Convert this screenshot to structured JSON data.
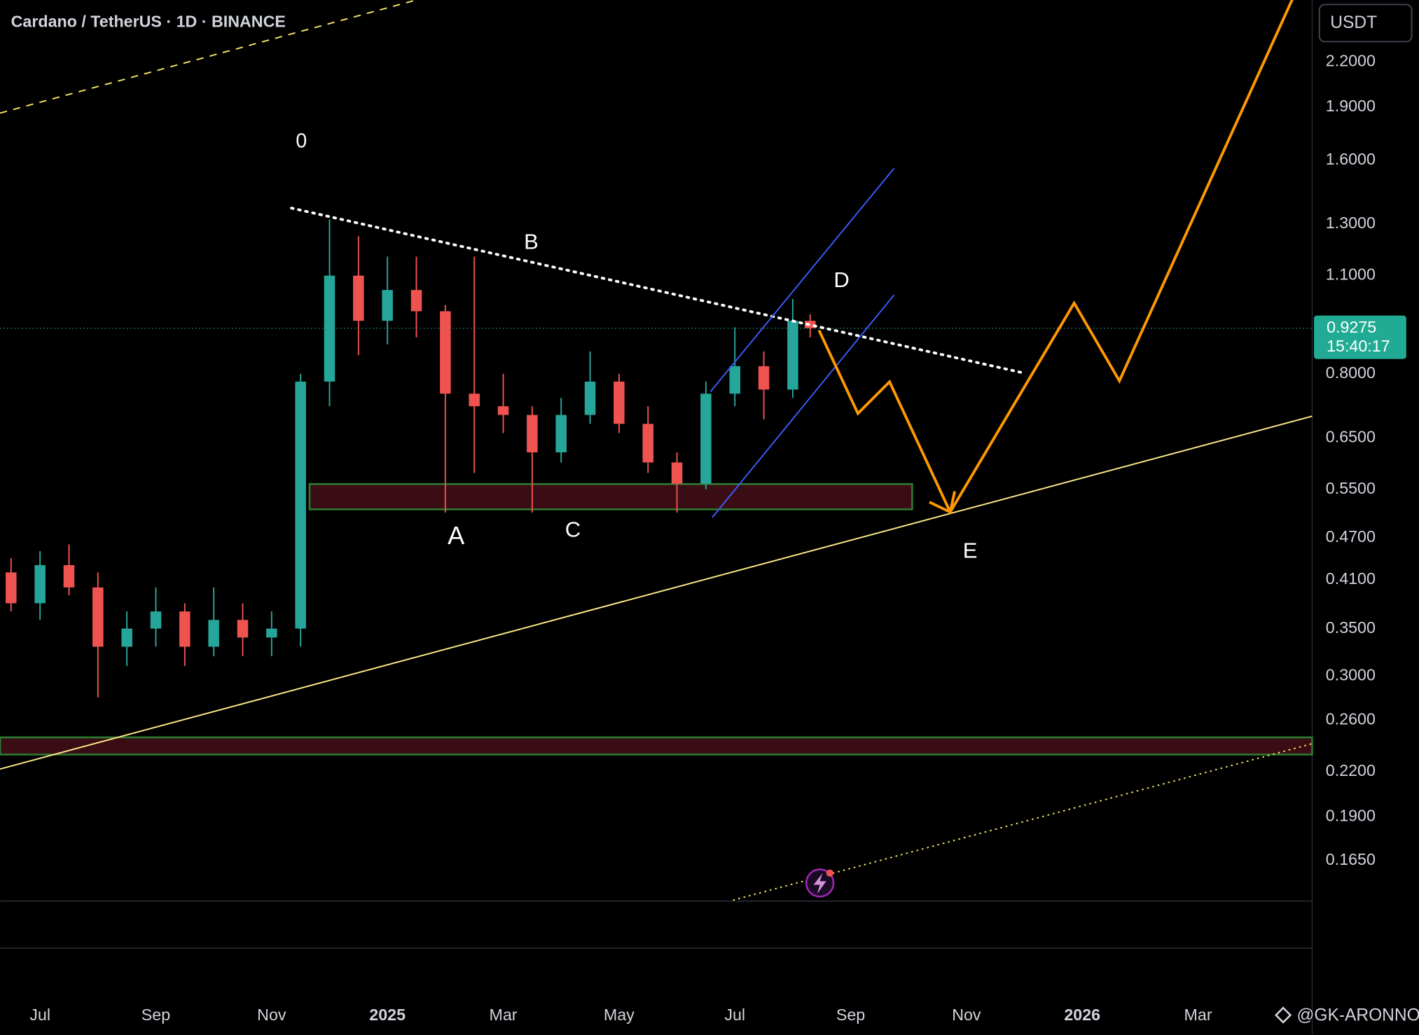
{
  "chart_data": {
    "type": "candlestick",
    "title": "Cardano / TetherUS · 1D · BINANCE",
    "currency": "USDT",
    "last_price": 0.9275,
    "countdown": "15:40:17",
    "watermark": "@GK-ARONNO",
    "log_scale": true,
    "grid": false,
    "up_color": "#26a69a",
    "down_color": "#ef5350",
    "xlim": [
      -0.69,
      21.97
    ],
    "xticks": [
      {
        "value": 0,
        "label": "Jul"
      },
      {
        "value": 2,
        "label": "Sep"
      },
      {
        "value": 4,
        "label": "Nov"
      },
      {
        "value": 6,
        "label": "2025"
      },
      {
        "value": 8,
        "label": "Mar"
      },
      {
        "value": 10,
        "label": "May"
      },
      {
        "value": 12,
        "label": "Jul"
      },
      {
        "value": 14,
        "label": "Sep"
      },
      {
        "value": 16,
        "label": "Nov"
      },
      {
        "value": 18,
        "label": "2026"
      },
      {
        "value": 20,
        "label": "Mar"
      }
    ],
    "ylim": [
      0.145,
      2.69
    ],
    "yticks": [
      {
        "value": 2.2,
        "label": "2.2000"
      },
      {
        "value": 1.9,
        "label": "1.9000"
      },
      {
        "value": 1.6,
        "label": "1.6000"
      },
      {
        "value": 1.3,
        "label": "1.3000"
      },
      {
        "value": 1.1,
        "label": "1.1000"
      },
      {
        "value": 0.8,
        "label": "0.8000"
      },
      {
        "value": 0.65,
        "label": "0.6500"
      },
      {
        "value": 0.55,
        "label": "0.5500"
      },
      {
        "value": 0.47,
        "label": "0.4700"
      },
      {
        "value": 0.41,
        "label": "0.4100"
      },
      {
        "value": 0.35,
        "label": "0.3500"
      },
      {
        "value": 0.3,
        "label": "0.3000"
      },
      {
        "value": 0.26,
        "label": "0.2600"
      },
      {
        "value": 0.22,
        "label": "0.2200"
      },
      {
        "value": 0.19,
        "label": "0.1900"
      },
      {
        "value": 0.165,
        "label": "0.1650"
      }
    ],
    "x": [
      -0.5,
      0,
      0.5,
      1,
      1.5,
      2,
      2.5,
      3,
      3.5,
      4,
      4.5,
      5,
      5.5,
      6,
      6.5,
      7,
      7.5,
      8,
      8.5,
      9,
      9.5,
      10,
      10.5,
      11,
      11.5,
      12,
      12.5,
      13,
      13.3
    ],
    "open": [
      0.42,
      0.38,
      0.43,
      0.4,
      0.33,
      0.35,
      0.37,
      0.33,
      0.36,
      0.34,
      0.35,
      0.78,
      1.1,
      0.95,
      1.05,
      0.98,
      0.75,
      0.72,
      0.7,
      0.62,
      0.7,
      0.78,
      0.68,
      0.6,
      0.56,
      0.75,
      0.82,
      0.76,
      0.95
    ],
    "high": [
      0.44,
      0.45,
      0.46,
      0.42,
      0.37,
      0.4,
      0.38,
      0.4,
      0.38,
      0.37,
      0.8,
      1.32,
      1.25,
      1.17,
      1.17,
      1.0,
      1.17,
      0.8,
      0.72,
      0.74,
      0.86,
      0.8,
      0.72,
      0.62,
      0.78,
      0.93,
      0.86,
      1.02,
      0.97
    ],
    "low": [
      0.37,
      0.36,
      0.39,
      0.28,
      0.31,
      0.33,
      0.31,
      0.32,
      0.32,
      0.32,
      0.33,
      0.72,
      0.85,
      0.88,
      0.9,
      0.51,
      0.58,
      0.66,
      0.51,
      0.6,
      0.68,
      0.66,
      0.58,
      0.51,
      0.55,
      0.72,
      0.69,
      0.74,
      0.9
    ],
    "close": [
      0.38,
      0.43,
      0.4,
      0.33,
      0.35,
      0.37,
      0.33,
      0.36,
      0.34,
      0.35,
      0.78,
      1.1,
      0.95,
      1.05,
      0.98,
      0.75,
      0.72,
      0.7,
      0.62,
      0.7,
      0.78,
      0.68,
      0.6,
      0.56,
      0.75,
      0.82,
      0.76,
      0.95,
      0.9275
    ],
    "annotations": [
      "0",
      "A",
      "B",
      "C",
      "D",
      "E"
    ]
  }
}
